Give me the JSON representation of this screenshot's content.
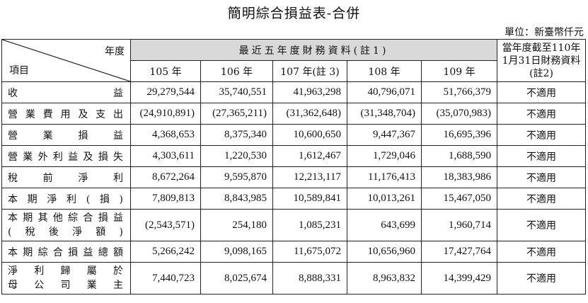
{
  "title": "簡明綜合損益表-合併",
  "unit": "單位：新臺幣仟元",
  "header": {
    "corner_top": "年度",
    "corner_bottom": "項目",
    "group": "最近五年度財務資料(註1)",
    "current": "當年度截至110年1月31日財務資料(註2)",
    "years": [
      "105 年",
      "106 年",
      "107 年(註 3)",
      "108 年",
      "109 年"
    ]
  },
  "rows": [
    {
      "label": [
        "收益"
      ],
      "values": [
        "29,279,544",
        "35,740,551",
        "41,963,298",
        "40,796,071",
        "51,766,379"
      ],
      "current": "不適用"
    },
    {
      "label": [
        "營業費用及支出"
      ],
      "values": [
        "(24,910,891)",
        "(27,365,211)",
        "(31,362,648)",
        "(31,348,704)",
        "(35,070,983)"
      ],
      "current": "不適用"
    },
    {
      "label": [
        "營業損益"
      ],
      "values": [
        "4,368,653",
        "8,375,340",
        "10,600,650",
        "9,447,367",
        "16,695,396"
      ],
      "current": "不適用"
    },
    {
      "label": [
        "營業外利益及損失"
      ],
      "values": [
        "4,303,611",
        "1,220,530",
        "1,612,467",
        "1,729,046",
        "1,688,590"
      ],
      "current": "不適用"
    },
    {
      "label": [
        "稅前淨利"
      ],
      "values": [
        "8,672,264",
        "9,595,870",
        "12,213,117",
        "11,176,413",
        "18,383,986"
      ],
      "current": "不適用"
    },
    {
      "label": [
        "本期淨利(損)"
      ],
      "values": [
        "7,809,813",
        "8,843,985",
        "10,589,841",
        "10,013,261",
        "15,467,050"
      ],
      "current": "不適用"
    },
    {
      "label": [
        "本期其他綜合損益",
        "(稅後淨額)"
      ],
      "values": [
        "(2,543,571)",
        "254,180",
        "1,085,231",
        "643,699",
        "1,960,714"
      ],
      "current": "不適用"
    },
    {
      "label": [
        "本期綜合損益總額"
      ],
      "values": [
        "5,266,242",
        "9,098,165",
        "11,675,072",
        "10,656,960",
        "17,427,764"
      ],
      "current": "不適用"
    },
    {
      "label": [
        "淨利歸屬於",
        "母公司業主"
      ],
      "values": [
        "7,440,723",
        "8,025,674",
        "8,888,331",
        "8,963,832",
        "14,399,429"
      ],
      "current": "不適用"
    }
  ]
}
